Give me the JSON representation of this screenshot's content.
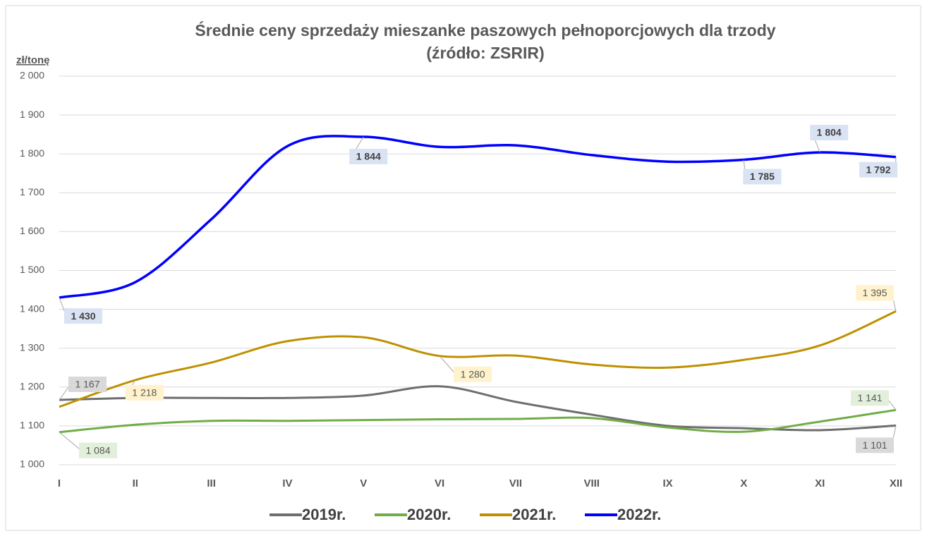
{
  "chart_data": {
    "type": "line",
    "title": "Średnie ceny sprzedaży mieszanke paszowych pełnoporcjowych dla trzody",
    "subtitle": "(źródło: ZSRIR)",
    "y_label": "zł/tonę",
    "categories": [
      "I",
      "II",
      "III",
      "IV",
      "V",
      "VI",
      "VII",
      "VIII",
      "IX",
      "X",
      "XI",
      "XII"
    ],
    "series": [
      {
        "name": "2019r.",
        "color": "#6e6e6e",
        "values": [
          1167,
          1172,
          1172,
          1172,
          1178,
          1202,
          1162,
          1129,
          1100,
          1094,
          1089,
          1101
        ],
        "value_labels": [
          "1 167",
          null,
          null,
          null,
          null,
          null,
          null,
          null,
          null,
          null,
          null,
          "1 101"
        ]
      },
      {
        "name": "2020r.",
        "color": "#70ad47",
        "values": [
          1084,
          1103,
          1113,
          1113,
          1115,
          1117,
          1118,
          1120,
          1096,
          1085,
          1111,
          1141
        ],
        "value_labels": [
          "1 084",
          null,
          null,
          null,
          null,
          null,
          null,
          null,
          null,
          null,
          null,
          "1 141"
        ]
      },
      {
        "name": "2021r.",
        "color": "#bf9000",
        "values": [
          1149,
          1218,
          1263,
          1318,
          1328,
          1280,
          1281,
          1258,
          1250,
          1270,
          1307,
          1395
        ],
        "value_labels": [
          null,
          "1 218",
          null,
          null,
          null,
          "1 280",
          null,
          null,
          null,
          null,
          null,
          "1 395"
        ]
      },
      {
        "name": "2022r.",
        "color": "#0000ff",
        "values": [
          1430,
          1470,
          1632,
          1820,
          1844,
          1818,
          1822,
          1797,
          1780,
          1785,
          1804,
          1792
        ],
        "value_labels": [
          "1 430",
          null,
          null,
          null,
          "1 844",
          null,
          null,
          null,
          null,
          "1 785",
          "1 804",
          "1 792"
        ]
      }
    ],
    "ylim": [
      1000,
      2000
    ],
    "yticks": [
      {
        "value": 1000,
        "label": "1 000"
      },
      {
        "value": 1100,
        "label": "1 100"
      },
      {
        "value": 1200,
        "label": "1 200"
      },
      {
        "value": 1300,
        "label": "1 300"
      },
      {
        "value": 1400,
        "label": "1 400"
      },
      {
        "value": 1500,
        "label": "1 500"
      },
      {
        "value": 1600,
        "label": "1 600"
      },
      {
        "value": 1700,
        "label": "1 700"
      },
      {
        "value": 1800,
        "label": "1 800"
      },
      {
        "value": 1900,
        "label": "1 900"
      },
      {
        "value": 2000,
        "label": "2 000"
      }
    ],
    "grid": true,
    "legend": "bottom"
  }
}
